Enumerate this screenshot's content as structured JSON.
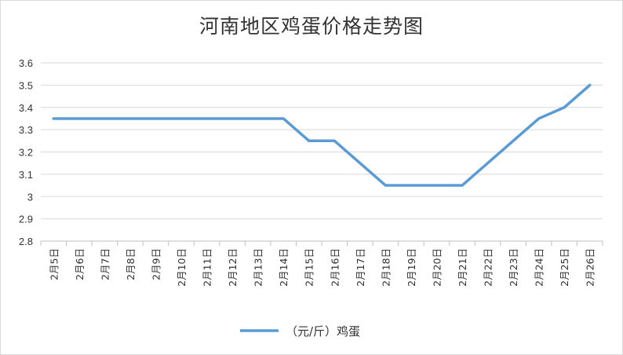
{
  "chart_data": {
    "type": "line",
    "title": "河南地区鸡蛋价格走势图",
    "xlabel": "",
    "ylabel": "",
    "ylim": [
      2.8,
      3.6
    ],
    "yticks": [
      "3.6",
      "3.5",
      "3.4",
      "3.3",
      "3.2",
      "3.1",
      "3",
      "2.9",
      "2.8"
    ],
    "grid": true,
    "legend": "bottom",
    "categories": [
      "2月5日",
      "2月6日",
      "2月7日",
      "2月8日",
      "2月9日",
      "2月10日",
      "2月11日",
      "2月12日",
      "2月13日",
      "2月14日",
      "2月15日",
      "2月16日",
      "2月17日",
      "2月18日",
      "2月19日",
      "2月20日",
      "2月21日",
      "2月22日",
      "2月23日",
      "2月24日",
      "2月25日",
      "2月26日"
    ],
    "series": [
      {
        "name": "（元/斤）鸡蛋",
        "color": "#5b9bd5",
        "values": [
          3.35,
          3.35,
          3.35,
          3.35,
          3.35,
          3.35,
          3.35,
          3.35,
          3.35,
          3.35,
          3.25,
          3.25,
          3.15,
          3.05,
          3.05,
          3.05,
          3.05,
          3.15,
          3.25,
          3.35,
          3.4,
          3.5
        ]
      }
    ]
  }
}
